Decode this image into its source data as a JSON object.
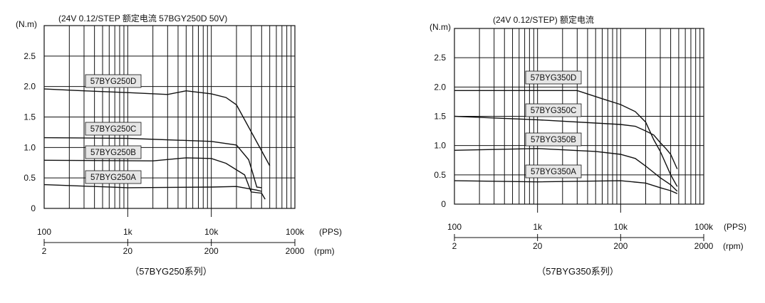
{
  "chart_data": [
    {
      "type": "line",
      "title": "(24V  0.12/STEP 额定电流  57BGY250D 50V)",
      "ylabel": "(N.m)",
      "ylim": [
        0,
        3.0
      ],
      "yticks": [
        "0",
        "0.5",
        "1.0",
        "1.5",
        "2.0",
        "2.5"
      ],
      "x_scale": "log",
      "xlim": [
        100,
        100000
      ],
      "pps_ticks": [
        "100",
        "1k",
        "10k",
        "100k"
      ],
      "pps_unit": "(PPS)",
      "rpm_ticks": [
        "2",
        "20",
        "200",
        "2000"
      ],
      "rpm_unit": "(rpm)",
      "caption": "（57BYG250系列）",
      "series": [
        {
          "name": "57BYG250D",
          "x": [
            100,
            300,
            1000,
            3000,
            5000,
            10000,
            15000,
            20000,
            50000
          ],
          "y": [
            1.96,
            1.93,
            1.9,
            1.87,
            1.93,
            1.88,
            1.82,
            1.7,
            0.7
          ]
        },
        {
          "name": "57BYG250C",
          "x": [
            100,
            1000,
            10000,
            20000,
            28000,
            31000,
            35000,
            40000
          ],
          "y": [
            1.16,
            1.15,
            1.1,
            1.04,
            0.8,
            0.6,
            0.35,
            0.34
          ]
        },
        {
          "name": "57BYG250B",
          "x": [
            100,
            2000,
            5000,
            10000,
            15000,
            25000,
            30000,
            40000,
            44000
          ],
          "y": [
            0.79,
            0.78,
            0.83,
            0.82,
            0.74,
            0.55,
            0.27,
            0.25,
            0.15
          ]
        },
        {
          "name": "57BYG250A",
          "x": [
            100,
            1000,
            10000,
            20000,
            35000,
            40000
          ],
          "y": [
            0.39,
            0.34,
            0.35,
            0.36,
            0.3,
            0.28
          ]
        }
      ]
    },
    {
      "type": "line",
      "title": "(24V  0.12/STEP) 额定电流",
      "ylabel": "(N.m)",
      "ylim": [
        0,
        3.0
      ],
      "yticks": [
        "0",
        "0.5",
        "1.0",
        "1.5",
        "2.0",
        "2.5"
      ],
      "x_scale": "log",
      "xlim": [
        100,
        100000
      ],
      "pps_ticks": [
        "100",
        "1k",
        "10k",
        "100k"
      ],
      "pps_unit": "(PPS)",
      "rpm_ticks": [
        "2",
        "20",
        "200",
        "2000"
      ],
      "rpm_unit": "(rpm)",
      "caption": "（57BYG350系列）",
      "series": [
        {
          "name": "57BYG350D",
          "x": [
            100,
            1000,
            3000,
            6000,
            10000,
            15000,
            20000,
            25000,
            30000,
            40000,
            48000
          ],
          "y": [
            1.94,
            1.94,
            1.94,
            1.8,
            1.7,
            1.58,
            1.4,
            1.1,
            0.9,
            0.5,
            0.3
          ]
        },
        {
          "name": "57BYG350C",
          "x": [
            100,
            1000,
            10000,
            15000,
            20000,
            25000,
            30000,
            35000,
            40000,
            48000
          ],
          "y": [
            1.5,
            1.44,
            1.36,
            1.33,
            1.25,
            1.18,
            1.05,
            0.95,
            0.85,
            0.6
          ]
        },
        {
          "name": "57BYG350B",
          "x": [
            100,
            1000,
            5000,
            10000,
            15000,
            20000,
            30000,
            40000,
            48000
          ],
          "y": [
            0.92,
            0.95,
            0.9,
            0.85,
            0.78,
            0.65,
            0.45,
            0.33,
            0.22
          ]
        },
        {
          "name": "57BYG350A",
          "x": [
            100,
            1000,
            10000,
            20000,
            30000,
            40000,
            48000
          ],
          "y": [
            0.4,
            0.38,
            0.4,
            0.36,
            0.28,
            0.23,
            0.18
          ]
        }
      ]
    }
  ]
}
